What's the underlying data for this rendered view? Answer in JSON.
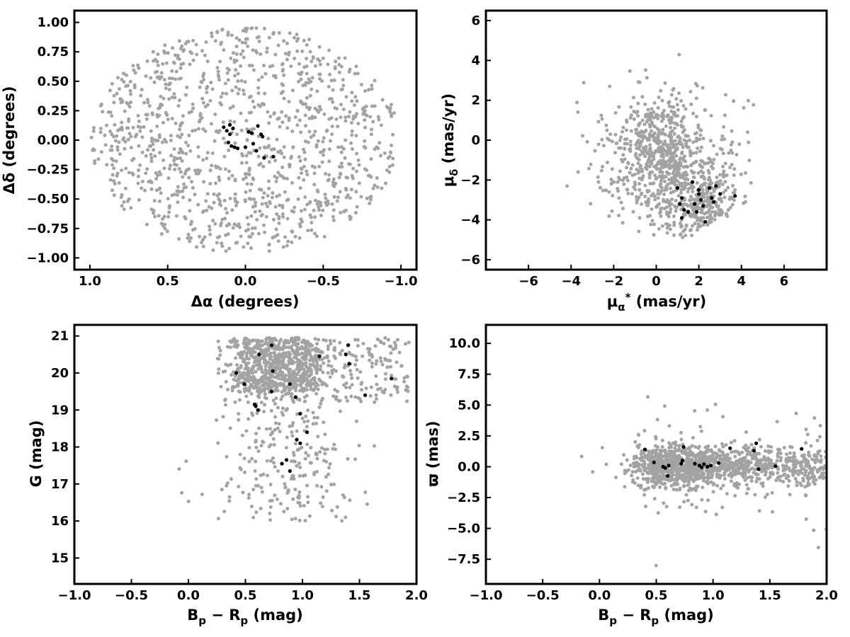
{
  "colors": {
    "background_points": "#a3a3a3",
    "members": "#000000",
    "axes": "#000000"
  },
  "chart_data": [
    {
      "id": "sky",
      "type": "scatter",
      "xlabel": "Δα (degrees)",
      "ylabel": "Δδ (degrees)",
      "xlim": [
        1.1,
        -1.1
      ],
      "ylim": [
        -1.1,
        1.1
      ],
      "x_reversed": true,
      "xticks": [
        1.0,
        0.5,
        0.0,
        -0.5,
        -1.0
      ],
      "xtick_labels": [
        "1.0",
        "0.5",
        "0.0",
        "−0.5",
        "−1.0"
      ],
      "yticks": [
        1.0,
        0.75,
        0.5,
        0.25,
        0.0,
        -0.25,
        -0.5,
        -0.75,
        -1.0
      ],
      "ytick_labels": [
        "1.00",
        "0.75",
        "0.50",
        "0.25",
        "0.00",
        "−0.25",
        "−0.50",
        "−0.75",
        "−1.00"
      ],
      "field": {
        "description": "grey field stars filling disk",
        "center": [
          0,
          0
        ],
        "radius": 1.0,
        "n_points": 1150
      },
      "members": [
        {
          "x": 0.14,
          "y": 0.11
        },
        {
          "x": 0.12,
          "y": 0.08
        },
        {
          "x": 0.1,
          "y": 0.13
        },
        {
          "x": 0.08,
          "y": 0.1
        },
        {
          "x": 0.1,
          "y": 0.05
        },
        {
          "x": 0.11,
          "y": -0.02
        },
        {
          "x": 0.09,
          "y": -0.05
        },
        {
          "x": 0.07,
          "y": -0.06
        },
        {
          "x": 0.05,
          "y": -0.07
        },
        {
          "x": 0.0,
          "y": -0.06
        },
        {
          "x": -0.02,
          "y": 0.07
        },
        {
          "x": -0.04,
          "y": 0.06
        },
        {
          "x": -0.05,
          "y": -0.03
        },
        {
          "x": -0.07,
          "y": -0.09
        },
        {
          "x": -0.08,
          "y": 0.12
        },
        {
          "x": -0.1,
          "y": 0.05
        },
        {
          "x": -0.11,
          "y": 0.03
        },
        {
          "x": -0.12,
          "y": -0.15
        },
        {
          "x": -0.18,
          "y": -0.14
        }
      ]
    },
    {
      "id": "proper-motion",
      "type": "scatter",
      "xlabel": "μα* (mas/yr)",
      "ylabel": "μδ (mas/yr)",
      "xlim": [
        -8,
        8
      ],
      "ylim": [
        -6.5,
        6.5
      ],
      "xticks": [
        -6,
        -4,
        -2,
        0,
        2,
        4,
        6
      ],
      "xtick_labels": [
        "−6",
        "−4",
        "−2",
        "0",
        "2",
        "4",
        "6"
      ],
      "yticks": [
        6,
        4,
        2,
        0,
        -2,
        -4,
        -6
      ],
      "ytick_labels": [
        "6",
        "4",
        "2",
        "0",
        "−2",
        "−4",
        "−6"
      ],
      "field": {
        "description": "grey field stars around (0,0) and (2,-3)",
        "n_points": 1100
      },
      "members": [
        {
          "x": 1.0,
          "y": -2.4
        },
        {
          "x": 1.2,
          "y": -2.9
        },
        {
          "x": 1.1,
          "y": -3.2
        },
        {
          "x": 1.3,
          "y": -3.5
        },
        {
          "x": 1.5,
          "y": -3.6
        },
        {
          "x": 1.7,
          "y": -2.1
        },
        {
          "x": 1.8,
          "y": -3.2
        },
        {
          "x": 1.9,
          "y": -3.6
        },
        {
          "x": 2.0,
          "y": -2.5
        },
        {
          "x": 2.0,
          "y": -2.7
        },
        {
          "x": 2.1,
          "y": -3.0
        },
        {
          "x": 2.2,
          "y": -3.3
        },
        {
          "x": 2.3,
          "y": -4.1
        },
        {
          "x": 2.5,
          "y": -2.4
        },
        {
          "x": 2.6,
          "y": -2.9
        },
        {
          "x": 2.7,
          "y": -3.1
        },
        {
          "x": 2.8,
          "y": -2.3
        },
        {
          "x": 3.0,
          "y": -2.7
        },
        {
          "x": 1.2,
          "y": -3.9
        },
        {
          "x": 3.7,
          "y": -2.8
        }
      ]
    },
    {
      "id": "cmd",
      "type": "scatter",
      "xlabel": "Bp − Rp (mag)",
      "ylabel": "G (mag)",
      "xlim": [
        -1.0,
        2.0
      ],
      "ylim": [
        14.3,
        21.3
      ],
      "y_reversed": false,
      "xticks": [
        -1.0,
        -0.5,
        0.0,
        0.5,
        1.0,
        1.5,
        2.0
      ],
      "xtick_labels": [
        "−1.0",
        "−0.5",
        "0.0",
        "0.5",
        "1.0",
        "1.5",
        "2.0"
      ],
      "yticks": [
        21,
        20,
        19,
        18,
        17,
        16,
        15
      ],
      "ytick_labels": [
        "21",
        "20",
        "19",
        "18",
        "17",
        "16",
        "15"
      ],
      "field": {
        "description": "grey field stars",
        "n_points": 1200
      },
      "members": [
        {
          "x": 0.42,
          "y": 20.0
        },
        {
          "x": 0.49,
          "y": 19.7
        },
        {
          "x": 0.58,
          "y": 19.15
        },
        {
          "x": 0.59,
          "y": 19.1
        },
        {
          "x": 0.61,
          "y": 19.0
        },
        {
          "x": 0.62,
          "y": 20.5
        },
        {
          "x": 0.73,
          "y": 20.75
        },
        {
          "x": 0.74,
          "y": 20.05
        },
        {
          "x": 0.73,
          "y": 19.5
        },
        {
          "x": 0.82,
          "y": 17.55
        },
        {
          "x": 0.86,
          "y": 17.65
        },
        {
          "x": 0.89,
          "y": 17.35
        },
        {
          "x": 0.89,
          "y": 19.7
        },
        {
          "x": 0.94,
          "y": 19.35
        },
        {
          "x": 0.95,
          "y": 18.2
        },
        {
          "x": 0.98,
          "y": 18.1
        },
        {
          "x": 0.98,
          "y": 18.9
        },
        {
          "x": 1.04,
          "y": 18.4
        },
        {
          "x": 1.15,
          "y": 20.45
        },
        {
          "x": 1.38,
          "y": 20.5
        },
        {
          "x": 1.4,
          "y": 20.75
        },
        {
          "x": 1.41,
          "y": 20.25
        },
        {
          "x": 1.55,
          "y": 19.4
        },
        {
          "x": 1.78,
          "y": 19.85
        }
      ]
    },
    {
      "id": "parallax",
      "type": "scatter",
      "xlabel": "Bp − Rp (mag)",
      "ylabel": "ϖ (mas)",
      "xlim": [
        -1.0,
        2.0
      ],
      "ylim": [
        -9.5,
        11.5
      ],
      "xticks": [
        -1.0,
        -0.5,
        0.0,
        0.5,
        1.0,
        1.5,
        2.0
      ],
      "xtick_labels": [
        "−1.0",
        "−0.5",
        "0.0",
        "0.5",
        "1.0",
        "1.5",
        "2.0"
      ],
      "yticks": [
        10.0,
        7.5,
        5.0,
        2.5,
        0.0,
        -2.5,
        -5.0,
        -7.5
      ],
      "ytick_labels": [
        "10.0",
        "7.5",
        "5.0",
        "2.5",
        "0.0",
        "−2.5",
        "−5.0",
        "−7.5"
      ],
      "field": {
        "description": "grey field stars",
        "n_points": 1300
      },
      "members": [
        {
          "x": 0.4,
          "y": 1.4
        },
        {
          "x": 0.48,
          "y": 0.35
        },
        {
          "x": 0.56,
          "y": 0.0
        },
        {
          "x": 0.58,
          "y": -0.1
        },
        {
          "x": 0.6,
          "y": -0.75
        },
        {
          "x": 0.61,
          "y": 0.1
        },
        {
          "x": 0.72,
          "y": 0.25
        },
        {
          "x": 0.73,
          "y": 0.5
        },
        {
          "x": 0.74,
          "y": 1.6
        },
        {
          "x": 0.84,
          "y": 0.25
        },
        {
          "x": 0.88,
          "y": 0.1
        },
        {
          "x": 0.9,
          "y": -0.05
        },
        {
          "x": 0.92,
          "y": 0.2
        },
        {
          "x": 0.95,
          "y": 0.0
        },
        {
          "x": 0.98,
          "y": 0.1
        },
        {
          "x": 1.05,
          "y": 0.3
        },
        {
          "x": 1.15,
          "y": 1.5
        },
        {
          "x": 1.36,
          "y": 1.3
        },
        {
          "x": 1.38,
          "y": 1.9
        },
        {
          "x": 1.4,
          "y": -0.2
        },
        {
          "x": 1.55,
          "y": 0.05
        },
        {
          "x": 1.78,
          "y": 1.45
        }
      ]
    }
  ]
}
